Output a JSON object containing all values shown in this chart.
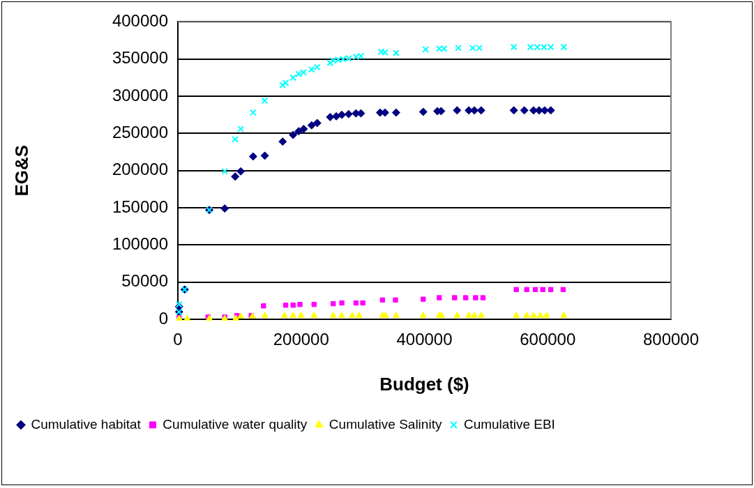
{
  "chart_data": {
    "type": "scatter",
    "xlabel": "Budget ($)",
    "ylabel": "EG&S",
    "xlim": [
      0,
      800000
    ],
    "xticks": [
      0,
      200000,
      400000,
      600000,
      800000
    ],
    "ylim": [
      0,
      400000
    ],
    "yticks": [
      0,
      50000,
      100000,
      150000,
      200000,
      250000,
      300000,
      350000,
      400000
    ],
    "grid": "y",
    "legend": "bottom",
    "series": [
      {
        "name": "Cumulative habitat",
        "color": "#000080",
        "marker": "diamond",
        "x": [
          2000,
          2000,
          11000,
          51000,
          76000,
          93000,
          102000,
          122000,
          141000,
          170000,
          187000,
          196000,
          204000,
          217000,
          226000,
          247000,
          257000,
          266000,
          277000,
          289000,
          297000,
          328000,
          336000,
          354000,
          398000,
          421000,
          427000,
          453000,
          472000,
          481000,
          492000,
          545000,
          562000,
          577000,
          586000,
          595000,
          605000
        ],
        "values": [
          17000,
          10000,
          40000,
          147000,
          149000,
          192000,
          199000,
          219000,
          220000,
          239000,
          248000,
          253000,
          256000,
          261000,
          264000,
          272000,
          273000,
          275000,
          276000,
          277000,
          277000,
          278000,
          278000,
          278000,
          279000,
          280000,
          280000,
          281000,
          281000,
          281000,
          281000,
          281000,
          281000,
          281000,
          281000,
          281000,
          281000
        ]
      },
      {
        "name": "Cumulative water quality",
        "color": "#ff00ff",
        "marker": "square",
        "x": [
          2000,
          49000,
          76000,
          96000,
          119000,
          139000,
          175000,
          187000,
          198000,
          221000,
          252000,
          266000,
          289000,
          300000,
          332000,
          353000,
          398000,
          424000,
          449000,
          467000,
          483000,
          495000,
          549000,
          566000,
          580000,
          592000,
          605000,
          625000
        ],
        "values": [
          2000,
          3000,
          3000,
          5000,
          5000,
          18000,
          19000,
          19000,
          20000,
          20000,
          21000,
          22000,
          22000,
          22000,
          26000,
          26000,
          27000,
          29000,
          29000,
          29000,
          29000,
          29000,
          40000,
          40000,
          40000,
          40000,
          40000,
          40000
        ]
      },
      {
        "name": "Cumulative Salinity",
        "color": "#ffff00",
        "marker": "triangle",
        "x": [
          2000,
          15000,
          51000,
          76000,
          94000,
          102000,
          121000,
          141000,
          173000,
          187000,
          200000,
          221000,
          252000,
          266000,
          283000,
          294000,
          332000,
          337000,
          354000,
          398000,
          424000,
          428000,
          453000,
          472000,
          481000,
          492000,
          549000,
          566000,
          577000,
          588000,
          598000,
          626000
        ],
        "values": [
          1000,
          1000,
          1000,
          1000,
          1000,
          4000,
          4000,
          5000,
          5000,
          5000,
          5000,
          5000,
          5000,
          5000,
          5000,
          5000,
          5000,
          5000,
          5000,
          5000,
          5000,
          5000,
          5000,
          5000,
          5000,
          5000,
          5000,
          5000,
          5000,
          5000,
          5000,
          5000
        ]
      },
      {
        "name": "Cumulative EBI",
        "color": "#00ffff",
        "marker": "cross",
        "x": [
          2000,
          2000,
          11000,
          51000,
          76000,
          93000,
          102000,
          122000,
          141000,
          170000,
          175000,
          187000,
          196000,
          204000,
          217000,
          226000,
          247000,
          252000,
          260000,
          268000,
          277000,
          289000,
          297000,
          330000,
          336000,
          354000,
          402000,
          424000,
          432000,
          455000,
          478000,
          489000,
          545000,
          572000,
          583000,
          594000,
          605000,
          626000
        ],
        "values": [
          20000,
          10000,
          40000,
          147000,
          199000,
          242000,
          256000,
          278000,
          294000,
          315000,
          318000,
          325000,
          330000,
          332000,
          336000,
          339000,
          345000,
          348000,
          349000,
          350000,
          351000,
          353000,
          354000,
          360000,
          359000,
          358000,
          363000,
          364000,
          364000,
          365000,
          365000,
          365000,
          366000,
          366000,
          366000,
          366000,
          366000,
          366000
        ]
      }
    ]
  }
}
